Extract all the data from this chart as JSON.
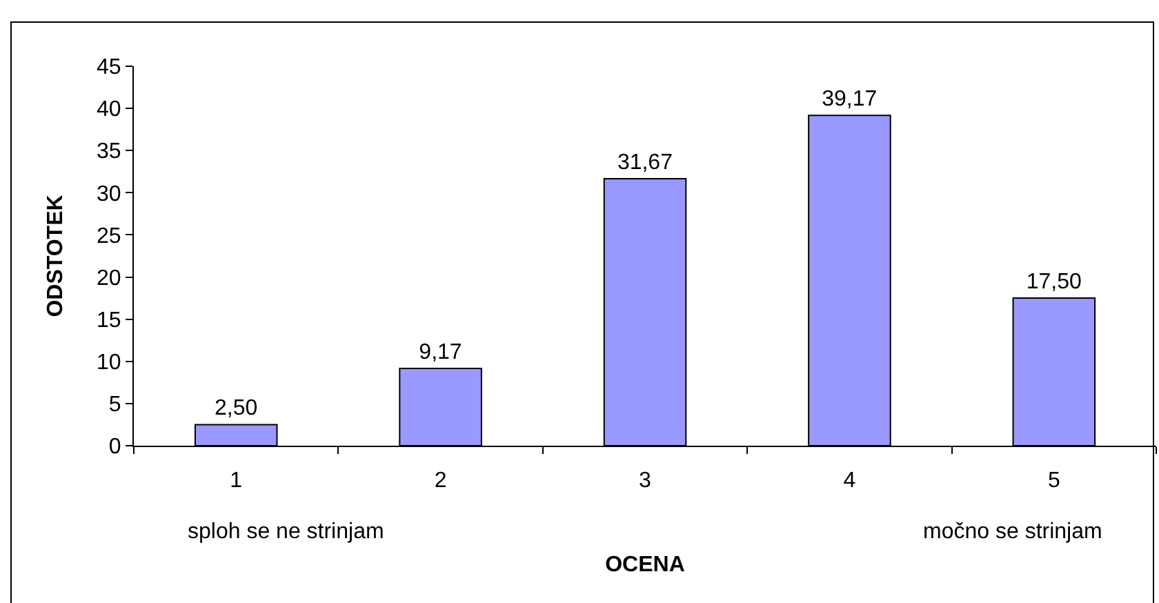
{
  "chart_data": {
    "type": "bar",
    "xlabel": "OCENA",
    "ylabel": "ODSTOTEK",
    "categories": [
      "1",
      "2",
      "3",
      "4",
      "5"
    ],
    "values": [
      2.5,
      9.17,
      31.67,
      39.17,
      17.5
    ],
    "value_labels": [
      "2,50",
      "9,17",
      "31,67",
      "39,17",
      "17,50"
    ],
    "color": "#9999ff",
    "ylim": [
      0,
      45
    ],
    "yticks": [
      0,
      5,
      10,
      15,
      20,
      25,
      30,
      35,
      40,
      45
    ],
    "annotations": [
      "sploh se ne strinjam",
      "močno se strinjam"
    ]
  }
}
